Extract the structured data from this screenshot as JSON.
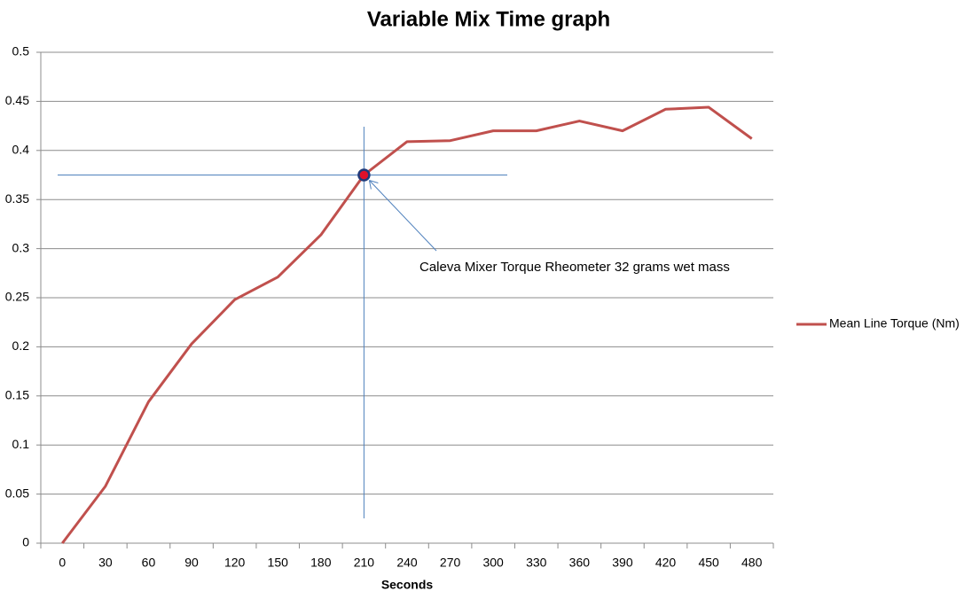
{
  "chart_data": {
    "type": "line",
    "title": "Variable Mix Time graph",
    "x_label": "Seconds",
    "categories": [
      "0",
      "30",
      "60",
      "90",
      "120",
      "150",
      "180",
      "210",
      "240",
      "270",
      "300",
      "330",
      "360",
      "390",
      "420",
      "450",
      "480"
    ],
    "series": [
      {
        "name": "Mean Line Torque (Nm)",
        "color": "#c0504d",
        "values": [
          0,
          0.058,
          0.144,
          0.203,
          0.248,
          0.271,
          0.314,
          0.375,
          0.409,
          0.41,
          0.42,
          0.42,
          0.43,
          0.42,
          0.442,
          0.444,
          0.412
        ]
      }
    ],
    "ylim": [
      0,
      0.5
    ],
    "yticks": [
      0,
      0.05,
      0.1,
      0.15,
      0.2,
      0.25,
      0.3,
      0.35,
      0.4,
      0.45,
      0.5
    ],
    "grid": true,
    "legend_position": "right",
    "annotation": {
      "text": "Caleva Mixer Torque Rheometer 32 grams wet mass",
      "category_index": 7,
      "color": "#4f81bd"
    }
  }
}
